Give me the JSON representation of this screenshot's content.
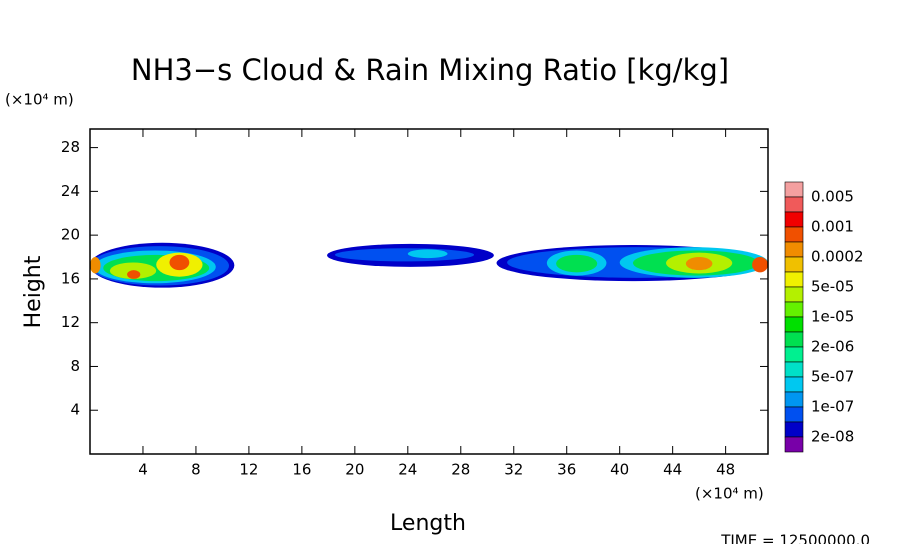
{
  "chart_data": {
    "type": "contour",
    "title": "NH3−s Cloud & Rain Mixing Ratio [kg/kg]",
    "x_label": "Length",
    "y_label": "Height",
    "x_unit": "(×10⁴ m)",
    "y_unit": "(×10⁴ m)",
    "footer": "TIME =  12500000.0",
    "xlim": [
      0,
      51.2
    ],
    "ylim": [
      0,
      29.7
    ],
    "xticks": [
      4,
      8,
      12,
      16,
      20,
      24,
      28,
      32,
      36,
      40,
      44,
      48
    ],
    "yticks": [
      4,
      8,
      12,
      16,
      20,
      24,
      28
    ],
    "colorbar": {
      "colors": [
        "#f4a0a0",
        "#f05a5a",
        "#f00000",
        "#f05000",
        "#f08c00",
        "#f0c000",
        "#f0f000",
        "#b4f000",
        "#64f000",
        "#00e000",
        "#00e050",
        "#00f090",
        "#00e0c8",
        "#00c8f0",
        "#0096f0",
        "#0050f0",
        "#0000c8",
        "#7800a8"
      ],
      "labels": [
        0.005,
        0.001,
        0.0002,
        {
          "value": 5e-05,
          "label": "5e-05"
        },
        {
          "value": 1e-05,
          "label": "1e-05"
        },
        {
          "value": 2e-06,
          "label": "2e-06"
        },
        {
          "value": 5e-07,
          "label": "5e-07"
        },
        {
          "value": 1e-07,
          "label": "1e-07"
        },
        {
          "value": 2e-08,
          "label": "2e-08"
        }
      ]
    },
    "regions": [
      {
        "x": [
          0,
          10.9
        ],
        "y": [
          15.2,
          19.3
        ],
        "level": 16
      },
      {
        "x": [
          0,
          10.5
        ],
        "y": [
          15.4,
          19.0
        ],
        "level": 15
      },
      {
        "x": [
          0.3,
          9.5
        ],
        "y": [
          15.6,
          18.6
        ],
        "level": 13
      },
      {
        "x": [
          1,
          9
        ],
        "y": [
          15.8,
          18.2
        ],
        "level": 10
      },
      {
        "x": [
          1.5,
          5
        ],
        "y": [
          16,
          17.5
        ],
        "level": 7
      },
      {
        "x": [
          5,
          8.5
        ],
        "y": [
          16.2,
          18.4
        ],
        "level": 6
      },
      {
        "x": [
          6,
          7.5
        ],
        "y": [
          16.8,
          18.2
        ],
        "level": 3
      },
      {
        "x": [
          0,
          0.8
        ],
        "y": [
          16.5,
          18
        ],
        "level": 4
      },
      {
        "x": [
          2.8,
          3.8
        ],
        "y": [
          16,
          16.8
        ],
        "level": 3
      },
      {
        "x": [
          17.9,
          30.5
        ],
        "y": [
          17.1,
          19.2
        ],
        "level": 16
      },
      {
        "x": [
          18.5,
          29
        ],
        "y": [
          17.6,
          18.8
        ],
        "level": 15
      },
      {
        "x": [
          24,
          27
        ],
        "y": [
          17.9,
          18.7
        ],
        "level": 13
      },
      {
        "x": [
          30.7,
          51.2
        ],
        "y": [
          15.8,
          19.1
        ],
        "level": 16
      },
      {
        "x": [
          31.5,
          51.2
        ],
        "y": [
          16.1,
          18.9
        ],
        "level": 15
      },
      {
        "x": [
          34.5,
          39
        ],
        "y": [
          16.3,
          18.6
        ],
        "level": 13
      },
      {
        "x": [
          35.2,
          38.3
        ],
        "y": [
          16.6,
          18.2
        ],
        "level": 10
      },
      {
        "x": [
          40,
          51.2
        ],
        "y": [
          16.1,
          18.9
        ],
        "level": 13
      },
      {
        "x": [
          41,
          50.5
        ],
        "y": [
          16.3,
          18.6
        ],
        "level": 10
      },
      {
        "x": [
          43.5,
          48.5
        ],
        "y": [
          16.5,
          18.4
        ],
        "level": 7
      },
      {
        "x": [
          45,
          47
        ],
        "y": [
          16.8,
          18
        ],
        "level": 4
      },
      {
        "x": [
          50,
          51.2
        ],
        "y": [
          16.6,
          18
        ],
        "level": 3
      }
    ]
  }
}
